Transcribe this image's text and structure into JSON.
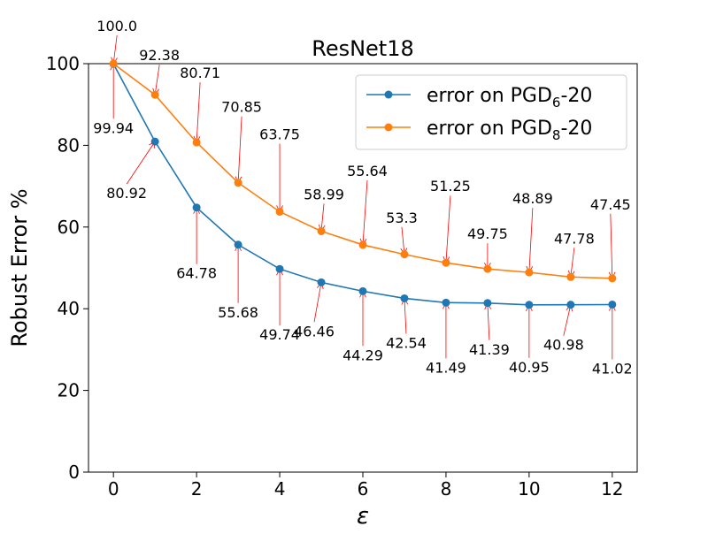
{
  "chart_data": {
    "type": "line",
    "title": "ResNet18",
    "xlabel": "ε",
    "ylabel": "Robust Error %",
    "xlim": [
      -0.6,
      12.6
    ],
    "ylim": [
      0,
      100
    ],
    "xticks": [
      0,
      2,
      4,
      6,
      8,
      10,
      12
    ],
    "yticks": [
      0,
      20,
      40,
      60,
      80,
      100
    ],
    "legend_position": "top-right",
    "series": [
      {
        "name": "error on PGD6-20",
        "legend_base": "error on PGD",
        "legend_sub": "6",
        "legend_suffix": "-20",
        "color": "#1f77b4",
        "x": [
          0,
          1,
          2,
          3,
          4,
          5,
          6,
          7,
          8,
          9,
          10,
          11,
          12
        ],
        "values": [
          99.94,
          80.92,
          64.78,
          55.68,
          49.74,
          46.46,
          44.29,
          42.54,
          41.49,
          41.39,
          40.95,
          40.98,
          41.02
        ],
        "labels": [
          "99.94",
          "80.92",
          "64.78",
          "55.68",
          "49.74",
          "46.46",
          "44.29",
          "42.54",
          "41.49",
          "41.39",
          "40.95",
          "40.98",
          "41.02"
        ]
      },
      {
        "name": "error on PGD8-20",
        "legend_base": "error on PGD",
        "legend_sub": "8",
        "legend_suffix": "-20",
        "color": "#ff7f0e",
        "x": [
          0,
          1,
          2,
          3,
          4,
          5,
          6,
          7,
          8,
          9,
          10,
          11,
          12
        ],
        "values": [
          100.0,
          92.38,
          80.71,
          70.85,
          63.75,
          58.99,
          55.64,
          53.3,
          51.25,
          49.75,
          48.89,
          47.78,
          47.45
        ],
        "labels": [
          "100.0",
          "92.38",
          "80.71",
          "70.85",
          "63.75",
          "58.99",
          "55.64",
          "53.3",
          "51.25",
          "49.75",
          "48.89",
          "47.78",
          "47.45"
        ]
      }
    ]
  }
}
